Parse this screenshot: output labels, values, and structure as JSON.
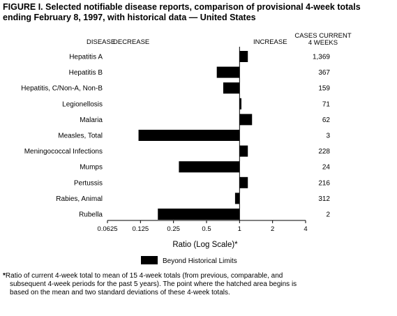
{
  "figure_label": "FIGURE I.",
  "title_line1": "Selected notifiable disease reports, comparison of provisional 4-week totals",
  "title_line2": "ending February 8, 1997, with historical data — United States",
  "headers": {
    "disease": "DISEASE",
    "decrease": "DECREASE",
    "increase": "INCREASE",
    "cases_line1": "CASES CURRENT",
    "cases_line2": "4 WEEKS"
  },
  "legend": {
    "label": "Beyond Historical Limits"
  },
  "footnote": {
    "marker": "*",
    "line1": "Ratio of current 4-week total to mean of 15 4-week totals (from previous, comparable, and",
    "line2": "subsequent 4-week periods for the past 5 years). The point where the hatched area begins is",
    "line3": "based on the mean and two standard deviations of these 4-week totals."
  },
  "colors": {
    "bar": "#000000",
    "axis": "#000000",
    "background": "#ffffff"
  },
  "chart_data": {
    "type": "bar",
    "orientation": "horizontal",
    "xlabel": "Ratio (Log Scale)*",
    "xscale": "log2",
    "xlim": [
      0.0625,
      4
    ],
    "baseline": 1,
    "xticks": [
      0.0625,
      0.125,
      0.25,
      0.5,
      1,
      2,
      4
    ],
    "xtick_labels": [
      "0.0625",
      "0.125",
      "0.25",
      "0.5",
      "1",
      "2",
      "4"
    ],
    "categories": [
      "Hepatitis A",
      "Hepatitis B",
      "Hepatitis, C/Non-A, Non-B",
      "Legionellosis",
      "Malaria",
      "Measles, Total",
      "Meningococcal Infections",
      "Mumps",
      "Pertussis",
      "Rabies, Animal",
      "Rubella"
    ],
    "values": [
      1.19,
      0.62,
      0.71,
      1.04,
      1.3,
      0.12,
      1.19,
      0.28,
      1.19,
      0.91,
      0.18
    ],
    "cases_current_4_weeks": [
      "1,369",
      "367",
      "159",
      "71",
      "62",
      "3",
      "228",
      "24",
      "216",
      "312",
      "2"
    ]
  }
}
